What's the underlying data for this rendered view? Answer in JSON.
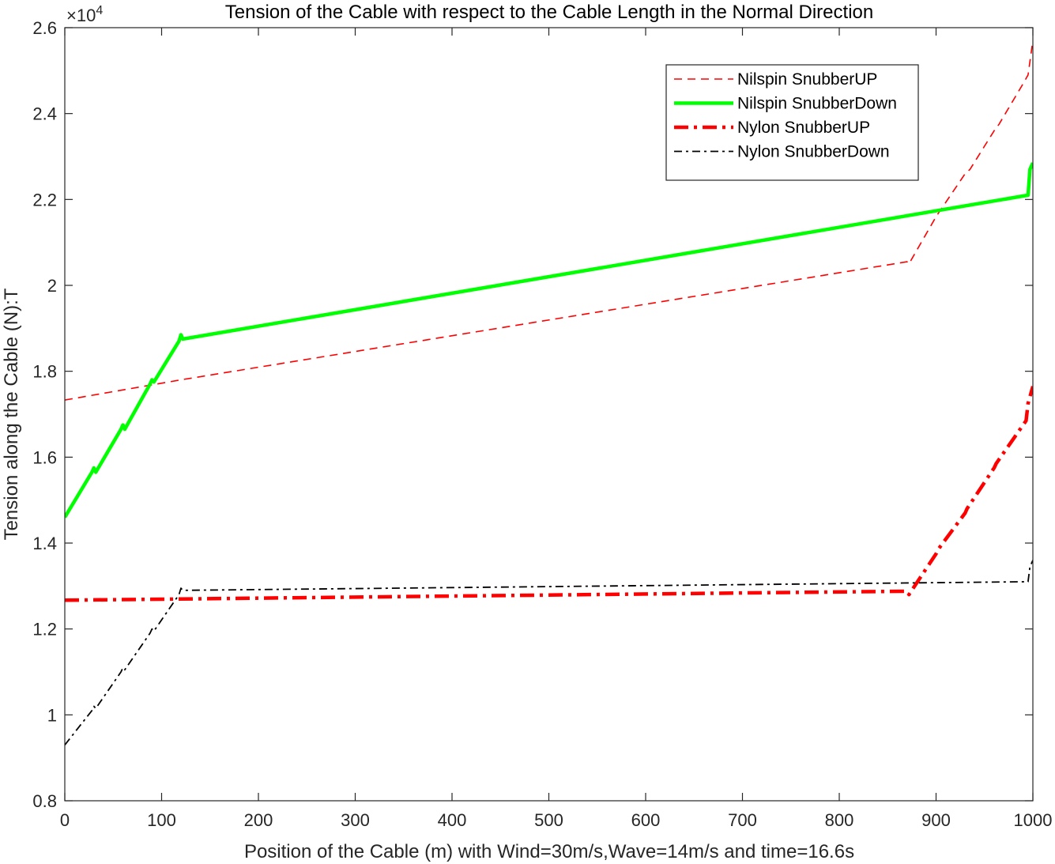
{
  "chart_data": {
    "type": "line",
    "title": "Tension of the Cable with respect to the Cable Length in the Normal Direction",
    "xlabel": "Position of the Cable (m) with Wind=30m/s,Wave=14m/s and time=16.6s",
    "ylabel": "Tension along the Cable (N):T",
    "y_exponent_label": "×10",
    "y_exponent_power": "4",
    "xlim": [
      0,
      1000
    ],
    "ylim": [
      0.8,
      2.6
    ],
    "xticks": [
      0,
      100,
      200,
      300,
      400,
      500,
      600,
      700,
      800,
      900,
      1000
    ],
    "yticks": [
      0.8,
      1,
      1.2,
      1.4,
      1.6,
      1.8,
      2,
      2.2,
      2.4,
      2.6
    ],
    "xtick_labels": [
      "0",
      "100",
      "200",
      "300",
      "400",
      "500",
      "600",
      "700",
      "800",
      "900",
      "1000"
    ],
    "ytick_labels": [
      "0.8",
      "1",
      "1.2",
      "1.4",
      "1.6",
      "1.8",
      "2",
      "2.2",
      "2.4",
      "2.6"
    ],
    "legend_position": "top-right",
    "grid": false,
    "series": [
      {
        "name": "Nilspin SnubberUP",
        "color": "#ff0000",
        "style": "dashed",
        "x": [
          0,
          120,
          870,
          872,
          900,
          930,
          935,
          960,
          965,
          990,
          995,
          1000
        ],
        "y": [
          1.733,
          1.78,
          2.055,
          2.05,
          2.16,
          2.26,
          2.27,
          2.36,
          2.375,
          2.47,
          2.49,
          2.57
        ]
      },
      {
        "name": "Nilspin SnubberDown",
        "color": "#00ff00",
        "style": "solid-thick",
        "x": [
          0,
          28,
          30,
          32,
          58,
          60,
          62,
          88,
          90,
          92,
          118,
          120,
          122,
          995,
          997,
          1000
        ],
        "y": [
          1.46,
          1.565,
          1.575,
          1.565,
          1.665,
          1.675,
          1.665,
          1.77,
          1.78,
          1.775,
          1.87,
          1.885,
          1.875,
          2.21,
          2.27,
          2.285
        ]
      },
      {
        "name": "Nylon SnubberUP",
        "color": "#ff0000",
        "style": "dashdot-thick",
        "x": [
          0,
          870,
          872,
          900,
          902,
          930,
          932,
          960,
          962,
          993,
          995,
          1000
        ],
        "y": [
          1.267,
          1.288,
          1.28,
          1.375,
          1.385,
          1.47,
          1.48,
          1.575,
          1.585,
          1.685,
          1.725,
          1.765
        ]
      },
      {
        "name": "Nylon SnubberDown",
        "color": "#000000",
        "style": "dashdot",
        "x": [
          0,
          28,
          30,
          32,
          58,
          60,
          62,
          88,
          90,
          92,
          118,
          120,
          122,
          995,
          997,
          1000
        ],
        "y": [
          0.93,
          1.01,
          1.02,
          1.015,
          1.1,
          1.11,
          1.105,
          1.19,
          1.2,
          1.195,
          1.28,
          1.295,
          1.29,
          1.31,
          1.345,
          1.36
        ]
      }
    ]
  }
}
